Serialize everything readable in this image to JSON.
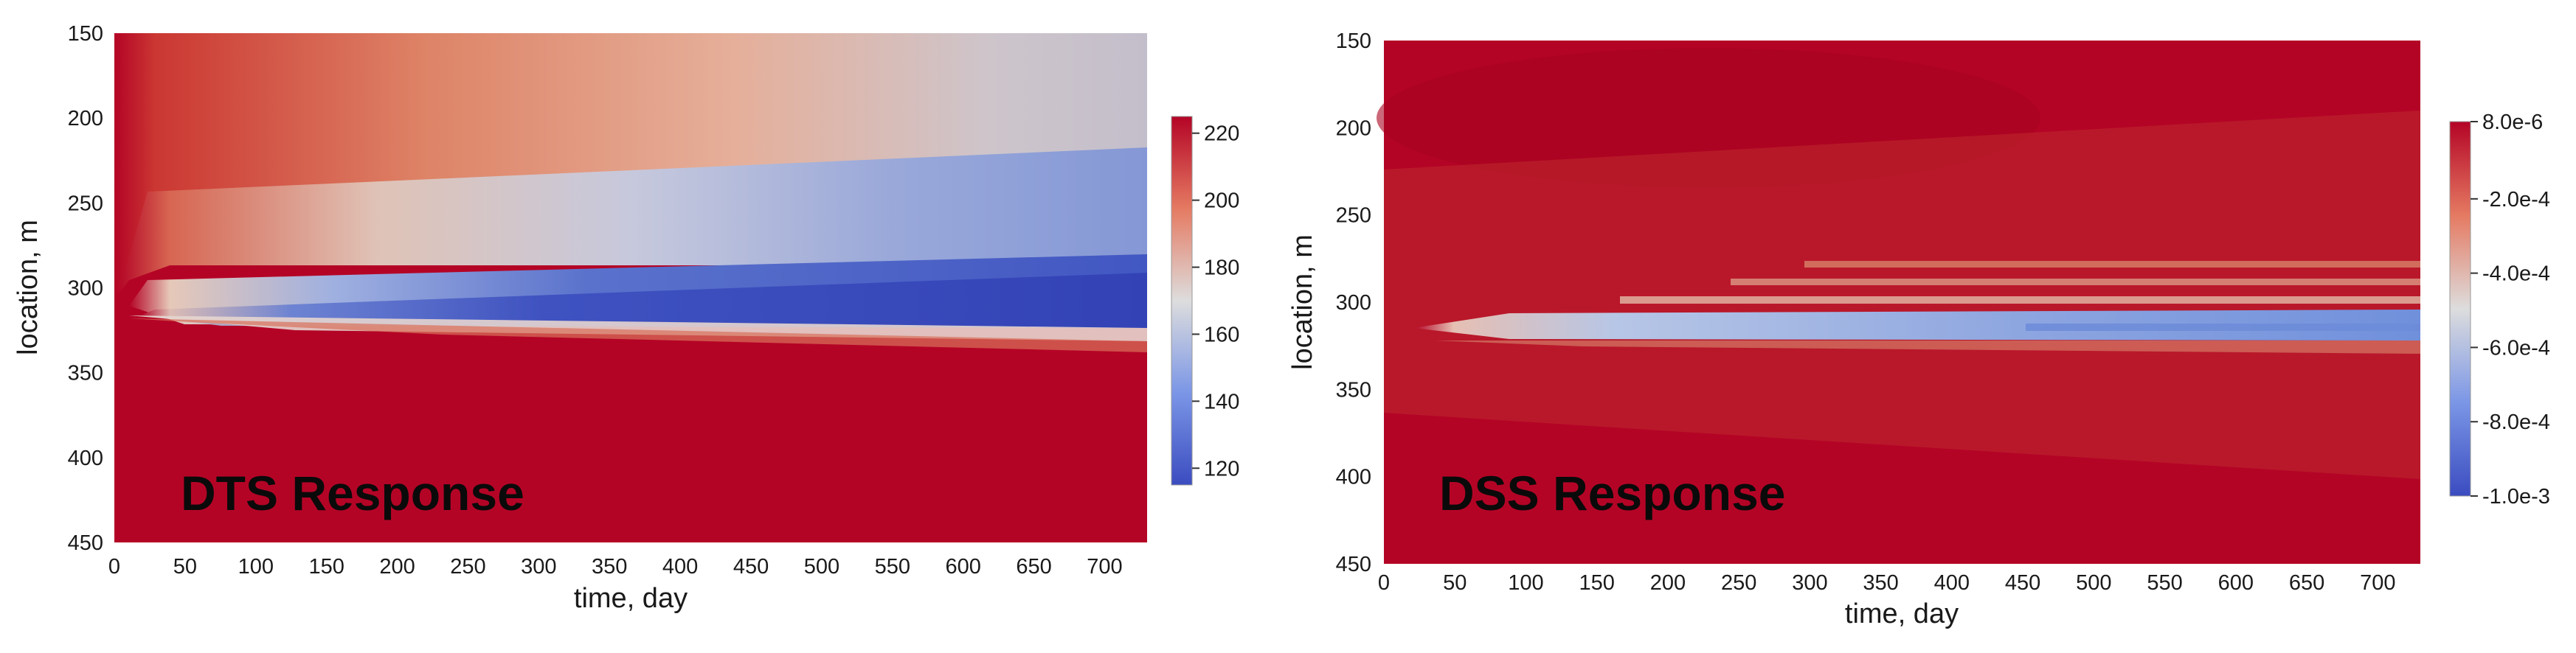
{
  "chart_data": [
    {
      "type": "heatmap",
      "overlay_label": "DTS Response",
      "xlabel": "time, day",
      "ylabel": "location, m",
      "xlim": [
        0,
        730
      ],
      "ylim": [
        150,
        450
      ],
      "y_inverted": true,
      "x_ticks": [
        0,
        50,
        100,
        150,
        200,
        250,
        300,
        350,
        400,
        450,
        500,
        550,
        600,
        650,
        700
      ],
      "y_ticks": [
        150,
        200,
        250,
        300,
        350,
        400,
        450
      ],
      "colorbar": {
        "range": [
          115,
          225
        ],
        "ticks": [
          {
            "value": 220,
            "label": "220"
          },
          {
            "value": 200,
            "label": "200"
          },
          {
            "value": 180,
            "label": "180"
          },
          {
            "value": 160,
            "label": "160"
          },
          {
            "value": 140,
            "label": "140"
          },
          {
            "value": 120,
            "label": "120"
          }
        ],
        "colormap": "cool-to-warm",
        "low_color": "#3b4cc0",
        "mid_color": "#dddddd",
        "high_color": "#b40426"
      }
    },
    {
      "type": "heatmap",
      "overlay_label": "DSS Response",
      "xlabel": "time, day",
      "ylabel": "location, m",
      "xlim": [
        0,
        730
      ],
      "ylim": [
        150,
        450
      ],
      "y_inverted": true,
      "x_ticks": [
        0,
        50,
        100,
        150,
        200,
        250,
        300,
        350,
        400,
        450,
        500,
        550,
        600,
        650,
        700
      ],
      "y_ticks": [
        150,
        200,
        250,
        300,
        350,
        400,
        450
      ],
      "colorbar": {
        "range": [
          -0.001,
          8e-06
        ],
        "ticks": [
          {
            "value": 8e-06,
            "label": "8.0e-6"
          },
          {
            "value": -0.0002,
            "label": "-2.0e-4"
          },
          {
            "value": -0.0004,
            "label": "-4.0e-4"
          },
          {
            "value": -0.0006,
            "label": "-6.0e-4"
          },
          {
            "value": -0.0008,
            "label": "-8.0e-4"
          },
          {
            "value": -0.001,
            "label": "-1.0e-3"
          }
        ],
        "colormap": "cool-to-warm",
        "low_color": "#3b4cc0",
        "mid_color": "#dddddd",
        "high_color": "#b40426"
      }
    }
  ]
}
